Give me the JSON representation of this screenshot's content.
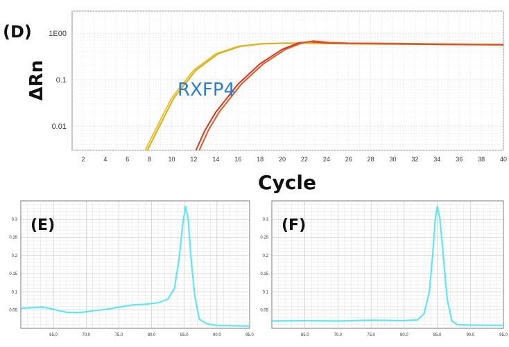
{
  "chart_data": [
    {
      "panel": "(D)",
      "type": "line",
      "title": "",
      "xlabel": "Cycle",
      "ylabel": "ΔRn",
      "yscale": "log",
      "annotation": "RXFP4",
      "xlim": [
        1,
        40
      ],
      "ylim": [
        0.003,
        3
      ],
      "x_ticks": [
        2,
        4,
        6,
        8,
        10,
        12,
        14,
        16,
        18,
        20,
        22,
        24,
        26,
        28,
        30,
        32,
        34,
        36,
        38,
        40
      ],
      "y_ticks": [
        {
          "value": 1,
          "label": "1E00"
        },
        {
          "value": 0.1,
          "label": "0.1"
        },
        {
          "value": 0.01,
          "label": "0.01"
        }
      ],
      "grid": true,
      "colors": {
        "early": "#e3b81c",
        "late": "#d9331f"
      },
      "series": [
        {
          "color": "#e8c22a",
          "x": [
            7.6,
            8.5,
            10,
            12,
            14,
            16,
            18,
            20,
            22,
            26,
            30,
            35,
            40
          ],
          "y": [
            0.003,
            0.008,
            0.04,
            0.16,
            0.36,
            0.52,
            0.59,
            0.61,
            0.61,
            0.59,
            0.58,
            0.57,
            0.56
          ]
        },
        {
          "color": "#dcae1e",
          "x": [
            7.8,
            8.7,
            10.2,
            12.2,
            14.2,
            16.2,
            18.2,
            20.2,
            22,
            26,
            30,
            35,
            40
          ],
          "y": [
            0.003,
            0.008,
            0.04,
            0.16,
            0.36,
            0.52,
            0.59,
            0.61,
            0.61,
            0.6,
            0.59,
            0.58,
            0.57
          ]
        },
        {
          "color": "#d9331f",
          "x": [
            12.2,
            13,
            14,
            16,
            18,
            20,
            21.5,
            22.5,
            24,
            26,
            30,
            35,
            40
          ],
          "y": [
            0.003,
            0.008,
            0.02,
            0.08,
            0.22,
            0.45,
            0.62,
            0.66,
            0.62,
            0.6,
            0.59,
            0.57,
            0.56
          ]
        },
        {
          "color": "#e2561f",
          "x": [
            12.5,
            13.3,
            14.3,
            16.3,
            18.3,
            20.3,
            21.8,
            22.8,
            24.3,
            26,
            30,
            35,
            40
          ],
          "y": [
            0.003,
            0.008,
            0.02,
            0.08,
            0.22,
            0.45,
            0.62,
            0.68,
            0.63,
            0.61,
            0.6,
            0.58,
            0.57
          ]
        }
      ]
    },
    {
      "panel": "(E)",
      "type": "line",
      "title": "",
      "xlim": [
        60,
        95
      ],
      "ylim": [
        0,
        0.35
      ],
      "x_ticks": [
        65,
        70,
        75,
        80,
        85,
        90,
        95
      ],
      "x_tick_labels": [
        "65.0",
        "70.0",
        "75.0",
        "80.0",
        "85.0",
        "90.0",
        "95.0"
      ],
      "y_ticks": [
        0.05,
        0.1,
        0.15,
        0.2,
        0.25,
        0.3
      ],
      "y_tick_labels": [
        "0.05",
        "0.1",
        "0.15",
        "0.2",
        "0.25",
        "0.3"
      ],
      "grid": true,
      "color": "#5ee6f2",
      "series": [
        {
          "x": [
            60,
            62,
            63.5,
            65,
            67,
            69,
            71,
            73,
            75,
            77,
            79,
            81,
            82.5,
            83.5,
            84.2,
            84.8,
            85.2,
            85.6,
            86,
            86.6,
            87.3,
            88.5,
            90,
            92,
            95
          ],
          "y": [
            0.055,
            0.057,
            0.058,
            0.052,
            0.044,
            0.043,
            0.048,
            0.052,
            0.058,
            0.064,
            0.066,
            0.07,
            0.08,
            0.11,
            0.19,
            0.29,
            0.335,
            0.3,
            0.2,
            0.09,
            0.025,
            0.012,
            0.008,
            0.007,
            0.006
          ]
        }
      ]
    },
    {
      "panel": "(F)",
      "type": "line",
      "title": "",
      "xlim": [
        60,
        95
      ],
      "ylim": [
        0,
        0.35
      ],
      "x_ticks": [
        65,
        70,
        75,
        80,
        85,
        90,
        95
      ],
      "x_tick_labels": [
        "65.0",
        "70.0",
        "75.0",
        "80.0",
        "85.0",
        "90.0",
        "95.0"
      ],
      "y_ticks": [
        0.05,
        0.1,
        0.15,
        0.2,
        0.25,
        0.3
      ],
      "y_tick_labels": [
        "0.05",
        "0.1",
        "0.15",
        "0.2",
        "0.25",
        "0.3"
      ],
      "grid": true,
      "color": "#5ee6f2",
      "series": [
        {
          "x": [
            60,
            65,
            70,
            75,
            80,
            82,
            83,
            83.8,
            84.3,
            84.7,
            85,
            85.4,
            85.9,
            86.5,
            87.2,
            88,
            90,
            95
          ],
          "y": [
            0.02,
            0.021,
            0.02,
            0.022,
            0.021,
            0.023,
            0.04,
            0.1,
            0.2,
            0.3,
            0.335,
            0.3,
            0.2,
            0.08,
            0.02,
            0.01,
            0.009,
            0.008
          ]
        }
      ]
    }
  ]
}
